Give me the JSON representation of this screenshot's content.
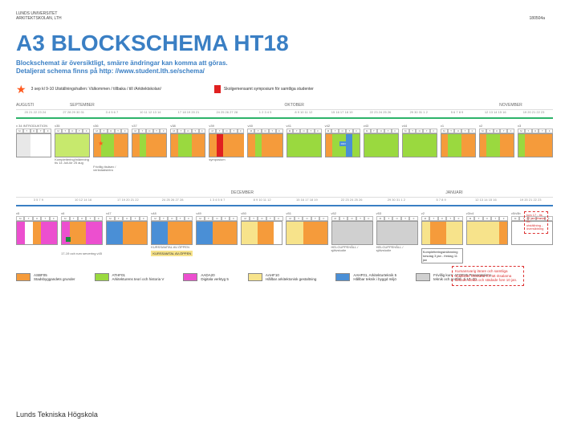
{
  "header": {
    "org_line1": "LUNDS UNIVERSITET",
    "org_line2": "ARKITEKTSKOLAN, LTH",
    "date_code": "180504a"
  },
  "title": {
    "text": "A3 BLOCKSCHEMA HT18",
    "color": "#3a7fc4"
  },
  "subtitle": {
    "line1": "Blockschemat är översiktligt, smärre ändringar kan komma att göras.",
    "line2": "Detaljerat schema finns på http: //www.student.lth.se/schema/",
    "color": "#3a7fc4"
  },
  "notes": {
    "star_text": "3 sep kl 9-10 Utställningshallen: Välkommen / tillbaka / till /Arkitektskolan/",
    "red_text": "Skolgemensamt symposium för samtliga studenter",
    "red_color": "#e02020"
  },
  "months_top": [
    "AUGUSTI",
    "SEPTEMBER",
    "",
    "",
    "",
    "OKTOBER",
    "",
    "",
    "",
    "NOVEMBER"
  ],
  "months_mid": [
    "",
    "",
    "",
    "",
    "DECEMBER",
    "",
    "",
    "",
    "JANUARI",
    ""
  ],
  "divider_colors": {
    "top": "#2db36a",
    "mid": "#3a7fc4"
  },
  "dates_top": [
    "20 21 22 23 24",
    "27 28 29 30 31",
    "3 4 5 6 7",
    "10 11 12 13 14",
    "17 18 19 20 21",
    "24 25 26 27 28",
    "1 2 3 4 5",
    "8 9 10 11 12",
    "15 16 17 18 19",
    "22 23 24 25 26",
    "29 30 31 1 2",
    "5 6 7 8 9",
    "12 13 14 15 16",
    "19 20 21 22 23"
  ],
  "dates_mid": [
    "3 5 7 9",
    "10 12 14 16",
    "17 19 20 21 22",
    "24 25 26 27 28",
    "1 3 4 5 6 7",
    "8 9 10 11 12",
    "15 16 17 18 19",
    "22 23 24 25 26",
    "29 30 31 1 2",
    "5 7 8 9",
    "12 13 14 15 16",
    "19 20 21 22 23"
  ],
  "days": [
    "M",
    "T",
    "O",
    "T",
    "F"
  ],
  "colors": {
    "orange": "#f59b3b",
    "green": "#9ad93f",
    "lime": "#c7e96d",
    "blue": "#4a8fd6",
    "magenta": "#ec4fcf",
    "yellow": "#f7e38b",
    "grey": "#d0d0d0",
    "lightgrey": "#e8e8e8",
    "red": "#e02020",
    "darkgreen": "#1a8a3a",
    "white": "#ffffff"
  },
  "row1": [
    {
      "wk": "v 34 INTRODUKTION",
      "cols": [
        "lightgrey",
        "lightgrey",
        "white",
        "white",
        "white"
      ],
      "cap": ""
    },
    {
      "wk": "v35",
      "cols": [
        "lime",
        "lime",
        "lime",
        "lime",
        "lime"
      ],
      "cap": "Komplettering/inlämning tis 14 Juli-lör 25 aug",
      "pre": ""
    },
    {
      "wk": "v36",
      "cols": [
        "orange",
        "green",
        "green",
        "orange",
        "orange"
      ],
      "cap": "Frivillig tisdsex / verkstadsintro",
      "star": true
    },
    {
      "wk": "v37",
      "cols": [
        "orange",
        "green",
        "orange",
        "orange",
        "orange"
      ],
      "cap": ""
    },
    {
      "wk": "v38",
      "cols": [
        "orange",
        "green",
        "green",
        "orange",
        "orange"
      ],
      "cap": ""
    },
    {
      "wk": "v39",
      "cols": [
        "orange",
        "red",
        "orange",
        "orange",
        "orange"
      ],
      "cap": "symposium"
    },
    {
      "wk": "v40",
      "cols": [
        "orange",
        "green",
        "orange",
        "orange",
        "orange"
      ],
      "cap": ""
    },
    {
      "wk": "v41",
      "cols": [
        "green",
        "green",
        "green",
        "green",
        "green"
      ],
      "cap": ""
    },
    {
      "wk": "v42",
      "cols": [
        "orange",
        "green",
        "green",
        "blue",
        "green"
      ],
      "cap": "",
      "badge": "RDV"
    },
    {
      "wk": "v43",
      "cols": [
        "green",
        "green",
        "green",
        "green",
        "green"
      ],
      "cap": ""
    },
    {
      "wk": "v44",
      "cols": [
        "green",
        "green",
        "green",
        "green",
        "green"
      ],
      "cap": ""
    },
    {
      "wk": "v1",
      "cols": [
        "orange",
        "green",
        "green",
        "orange",
        "orange"
      ],
      "cap": ""
    },
    {
      "wk": "v2",
      "cols": [
        "orange",
        "green",
        "green",
        "orange",
        "orange"
      ],
      "cap": ""
    },
    {
      "wk": "v3",
      "cols": [
        "green",
        "orange",
        "orange",
        "orange",
        "orange"
      ],
      "cap": ""
    }
  ],
  "row2": [
    {
      "wk": "v5",
      "cols": [
        "magenta",
        "white",
        "orange",
        "magenta",
        "magenta"
      ],
      "cap": ""
    },
    {
      "wk": "v6",
      "cols": [
        "magenta",
        "orange",
        "orange",
        "magenta",
        "magenta"
      ],
      "cap": "17-19 och rum servering v45",
      "flag": true
    },
    {
      "wk": "v47",
      "cols": [
        "blue",
        "blue",
        "orange",
        "orange",
        "orange"
      ],
      "cap": ""
    },
    {
      "wk": "v48",
      "cols": [
        "blue",
        "blue",
        "orange",
        "orange",
        "orange"
      ],
      "cap": "KURSSAMTAL AV-ÖPPEN",
      "kurssamtal": true
    },
    {
      "wk": "v49",
      "cols": [
        "blue",
        "blue",
        "orange",
        "orange",
        "orange"
      ],
      "cap": ""
    },
    {
      "wk": "v50",
      "cols": [
        "yellow",
        "yellow",
        "orange",
        "orange",
        "white"
      ],
      "cap": ""
    },
    {
      "wk": "v51",
      "cols": [
        "yellow",
        "yellow",
        "orange",
        "orange",
        "orange"
      ],
      "cap": ""
    },
    {
      "wk": "v52",
      "cols": [
        "grey",
        "grey",
        "grey",
        "grey",
        "grey"
      ],
      "cap": "HELGUPPEHÅLL / självstudie"
    },
    {
      "wk": "v53",
      "cols": [
        "grey",
        "grey",
        "grey",
        "grey",
        "grey"
      ],
      "cap": "HELGUPPEHÅLL / självstudie"
    },
    {
      "wk": "v2",
      "cols": [
        "yellow",
        "orange",
        "orange",
        "yellow",
        "yellow"
      ],
      "cap": "Kompletteringsinlämning torsdag 3 jan - fredag 11 jan",
      "komp": true
    },
    {
      "wk": "v3/v4",
      "cols": [
        "yellow",
        "yellow",
        "yellow",
        "yellow",
        "orange"
      ],
      "cap": ""
    },
    {
      "wk": "v5/v5b",
      "cols": [
        "white",
        "white",
        "white",
        "white",
        "white"
      ],
      "cap": ""
    }
  ],
  "dashed_main": "Kursansvarig lärare och samtliga studenter försvarar för att ritsalarna lämnas skada och städade fore 10 jan.",
  "dashed_side": "tors 17 - tis 22 jan ritsalar för- utställning - översiktning",
  "legend": [
    {
      "c": "orange",
      "t1": "ASBF05",
      "t2": "Stadsbyggandets grunder"
    },
    {
      "c": "green",
      "t1": "ATHF01",
      "t2": "Arkitekturens teori och historia V"
    },
    {
      "c": "magenta",
      "t1": "AADA20",
      "t2": "Digitala verktyg 5"
    },
    {
      "c": "yellow",
      "t1": "AAHF10",
      "t2": "Hållbar arkitektonisk gestaltning"
    },
    {
      "c": "blue",
      "t1": "AAHF01, Arkitekturteknik 5",
      "t2": "Hållbar teknik i byggd miljö"
    },
    {
      "c": "grey",
      "t1": "Frivillig kurs: AFOF25 Presentations-",
      "t2": "teknik och portfölj, ti 17–20"
    }
  ],
  "footer": "Lunds Tekniska Högskola"
}
